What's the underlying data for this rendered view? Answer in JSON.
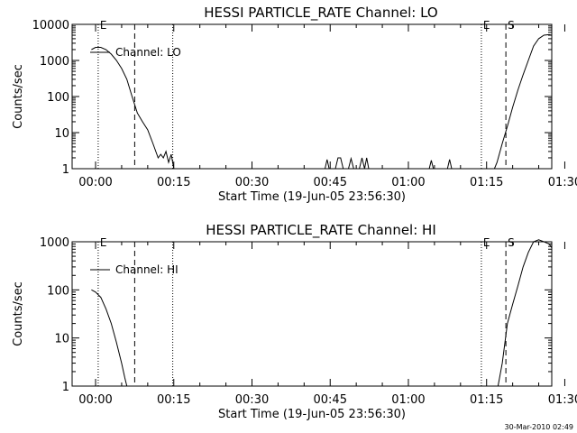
{
  "footer_text": "30-Mar-2010 02:49",
  "chart_data": [
    {
      "type": "line",
      "title": "HESSI PARTICLE_RATE Channel: LO",
      "xlabel": "Start Time (19-Jun-05 23:56:30)",
      "ylabel": "Counts/sec",
      "y_scale": "log",
      "ylim": [
        1,
        10000
      ],
      "y_ticks": [
        {
          "value": 1,
          "label": "1"
        },
        {
          "value": 10,
          "label": "10"
        },
        {
          "value": 100,
          "label": "100"
        },
        {
          "value": 1000,
          "label": "1000"
        },
        {
          "value": 10000,
          "label": "10000"
        }
      ],
      "xlim_minutes": [
        -4.5,
        87.5
      ],
      "x_ticks": [
        {
          "value": 0,
          "label": "00:00"
        },
        {
          "value": 15,
          "label": "00:15"
        },
        {
          "value": 30,
          "label": "00:30"
        },
        {
          "value": 45,
          "label": "00:45"
        },
        {
          "value": 60,
          "label": "01:00"
        },
        {
          "value": 75,
          "label": "01:15"
        },
        {
          "value": 90,
          "label": "01:30"
        }
      ],
      "legend": {
        "label": "Channel: LO",
        "position": "top-left"
      },
      "markers": [
        {
          "x": 0.5,
          "style": "dotted",
          "label": "E"
        },
        {
          "x": 7.5,
          "style": "dashed",
          "label": ""
        },
        {
          "x": 14.8,
          "style": "dotted",
          "label": ""
        },
        {
          "x": 74.0,
          "style": "dotted",
          "label": "E"
        },
        {
          "x": 78.7,
          "style": "dashed",
          "label": "S"
        },
        {
          "x": 90.0,
          "style": "dashdot",
          "label": ""
        }
      ],
      "series": [
        {
          "points": [
            [
              -0.8,
              2000
            ],
            [
              0,
              2300
            ],
            [
              1,
              2300
            ],
            [
              2,
              2000
            ],
            [
              3,
              1500
            ],
            [
              4,
              1000
            ],
            [
              5,
              600
            ],
            [
              6,
              300
            ],
            [
              7,
              100
            ],
            [
              8,
              35
            ],
            [
              9,
              20
            ],
            [
              10,
              12
            ],
            [
              11,
              5
            ],
            [
              12,
              2
            ],
            [
              12.5,
              2.5
            ],
            [
              13,
              2
            ],
            [
              13.5,
              3
            ],
            [
              14,
              1.5
            ],
            [
              14.5,
              2.5
            ],
            [
              15,
              1
            ],
            [
              15.5,
              1
            ]
          ]
        },
        {
          "points": [
            [
              44,
              1
            ],
            [
              44.4,
              1.8
            ],
            [
              44.8,
              1
            ]
          ]
        },
        {
          "points": [
            [
              46,
              1
            ],
            [
              46.5,
              2
            ],
            [
              47,
              2
            ],
            [
              47.5,
              1
            ]
          ]
        },
        {
          "points": [
            [
              48.5,
              1
            ],
            [
              49,
              1.9
            ],
            [
              49.5,
              1
            ]
          ]
        },
        {
          "points": [
            [
              50.6,
              1
            ],
            [
              51.1,
              2
            ],
            [
              51.6,
              1
            ],
            [
              52.0,
              2
            ],
            [
              52.4,
              1
            ]
          ]
        },
        {
          "points": [
            [
              64,
              1
            ],
            [
              64.4,
              1.7
            ],
            [
              64.8,
              1
            ]
          ]
        },
        {
          "points": [
            [
              67.5,
              1
            ],
            [
              67.9,
              1.8
            ],
            [
              68.3,
              1
            ]
          ]
        },
        {
          "points": [
            [
              76.5,
              1
            ],
            [
              77,
              1.5
            ],
            [
              78,
              5
            ],
            [
              79,
              15
            ],
            [
              80,
              50
            ],
            [
              81,
              150
            ],
            [
              82,
              400
            ],
            [
              83,
              1000
            ],
            [
              84,
              2500
            ],
            [
              85,
              4000
            ],
            [
              86,
              5000
            ],
            [
              87,
              5200
            ],
            [
              88,
              5000
            ],
            [
              89,
              4200
            ],
            [
              90,
              3000
            ]
          ]
        }
      ]
    },
    {
      "type": "line",
      "title": "HESSI PARTICLE_RATE Channel: HI",
      "xlabel": "Start Time (19-Jun-05 23:56:30)",
      "ylabel": "Counts/sec",
      "y_scale": "log",
      "ylim": [
        1,
        1000
      ],
      "y_ticks": [
        {
          "value": 1,
          "label": "1"
        },
        {
          "value": 10,
          "label": "10"
        },
        {
          "value": 100,
          "label": "100"
        },
        {
          "value": 1000,
          "label": "1000"
        }
      ],
      "xlim_minutes": [
        -4.5,
        87.5
      ],
      "x_ticks": [
        {
          "value": 0,
          "label": "00:00"
        },
        {
          "value": 15,
          "label": "00:15"
        },
        {
          "value": 30,
          "label": "00:30"
        },
        {
          "value": 45,
          "label": "00:45"
        },
        {
          "value": 60,
          "label": "01:00"
        },
        {
          "value": 75,
          "label": "01:15"
        },
        {
          "value": 90,
          "label": "01:30"
        }
      ],
      "legend": {
        "label": "Channel: HI",
        "position": "top-left"
      },
      "markers": [
        {
          "x": 0.5,
          "style": "dotted",
          "label": "E"
        },
        {
          "x": 7.5,
          "style": "dashed",
          "label": ""
        },
        {
          "x": 14.8,
          "style": "dotted",
          "label": ""
        },
        {
          "x": 74.0,
          "style": "dotted",
          "label": "E"
        },
        {
          "x": 78.7,
          "style": "dashed",
          "label": "S"
        },
        {
          "x": 90.0,
          "style": "dashdot",
          "label": ""
        }
      ],
      "series": [
        {
          "points": [
            [
              -0.8,
              100
            ],
            [
              0,
              90
            ],
            [
              1,
              70
            ],
            [
              2,
              40
            ],
            [
              3,
              20
            ],
            [
              4,
              8
            ],
            [
              5,
              3
            ],
            [
              5.6,
              1.5
            ],
            [
              6,
              1
            ]
          ]
        },
        {
          "points": [
            [
              77.2,
              1
            ],
            [
              78,
              3
            ],
            [
              79,
              20
            ],
            [
              80,
              50
            ],
            [
              81,
              120
            ],
            [
              82,
              300
            ],
            [
              83,
              600
            ],
            [
              84,
              1000
            ],
            [
              85,
              1100
            ],
            [
              86,
              1000
            ],
            [
              87,
              900
            ],
            [
              88,
              750
            ],
            [
              89,
              650
            ],
            [
              90,
              580
            ]
          ]
        }
      ]
    }
  ]
}
